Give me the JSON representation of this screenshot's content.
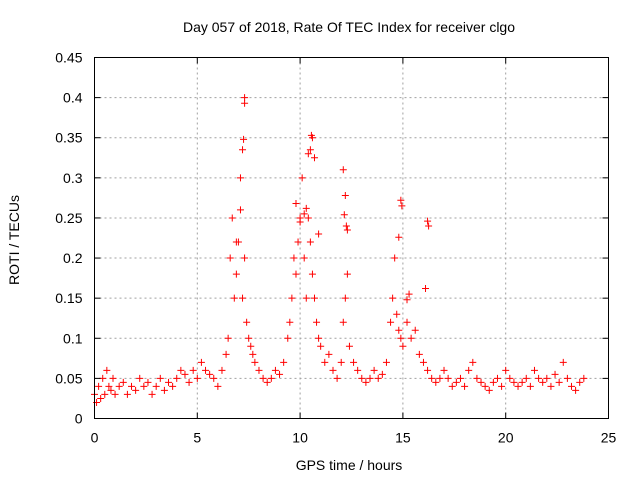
{
  "chart_data": {
    "type": "scatter",
    "title": "Day 057 of 2018, Rate Of TEC Index for receiver clgo",
    "xlabel": "GPS time / hours",
    "ylabel": "ROTI / TECUs",
    "xlim": [
      0,
      25
    ],
    "ylim": [
      0,
      0.45
    ],
    "x_ticks": [
      0,
      5,
      10,
      15,
      20,
      25
    ],
    "x_tick_labels": [
      "0",
      "5",
      "10",
      "15",
      "20",
      "25"
    ],
    "y_ticks": [
      0,
      0.05,
      0.1,
      0.15,
      0.2,
      0.25,
      0.3,
      0.35,
      0.4,
      0.45
    ],
    "y_tick_labels": [
      "0",
      "0.05",
      "0.1",
      "0.15",
      "0.2",
      "0.25",
      "0.3",
      "0.35",
      "0.4",
      "0.45"
    ],
    "grid": true,
    "marker": "+",
    "color": "#ff0000",
    "series": [
      {
        "name": "ROTI",
        "x": [
          0.0,
          0.1,
          0.2,
          0.3,
          0.4,
          0.5,
          0.6,
          0.7,
          0.8,
          0.9,
          1.0,
          1.2,
          1.4,
          1.6,
          1.8,
          2.0,
          2.2,
          2.4,
          2.6,
          2.8,
          3.0,
          3.2,
          3.4,
          3.6,
          3.8,
          4.0,
          4.2,
          4.4,
          4.6,
          4.8,
          5.0,
          5.2,
          5.4,
          5.6,
          5.8,
          6.0,
          6.2,
          6.4,
          6.5,
          6.6,
          6.7,
          6.8,
          6.9,
          7.0,
          7.1,
          7.2,
          7.3,
          7.4,
          7.5,
          7.6,
          7.7,
          7.8,
          8.0,
          8.2,
          8.4,
          8.6,
          8.8,
          9.0,
          9.2,
          9.4,
          9.5,
          9.6,
          9.7,
          9.8,
          9.9,
          10.0,
          10.1,
          10.2,
          10.3,
          10.4,
          10.5,
          10.6,
          10.7,
          10.8,
          10.9,
          11.0,
          11.2,
          11.4,
          11.6,
          11.8,
          12.0,
          12.1,
          12.2,
          12.3,
          12.4,
          12.6,
          12.8,
          13.0,
          13.2,
          13.4,
          13.6,
          13.8,
          14.0,
          14.2,
          14.4,
          14.5,
          14.6,
          14.7,
          14.8,
          14.9,
          15.0,
          15.2,
          15.4,
          15.6,
          15.8,
          16.0,
          16.2,
          16.4,
          16.6,
          16.8,
          17.0,
          17.2,
          17.4,
          17.6,
          17.8,
          18.0,
          18.2,
          18.4,
          18.6,
          18.8,
          19.0,
          19.2,
          19.4,
          19.6,
          19.8,
          20.0,
          20.2,
          20.4,
          20.6,
          20.8,
          21.0,
          21.2,
          21.4,
          21.6,
          21.8,
          22.0,
          22.2,
          22.4,
          22.6,
          22.8,
          23.0,
          23.2,
          23.4,
          23.6,
          23.8,
          7.3,
          7.3,
          7.25,
          7.2,
          10.55,
          10.6,
          10.5,
          10.4,
          10.7,
          12.1,
          12.2,
          12.15,
          14.9,
          14.95,
          14.8,
          16.2,
          16.25,
          16.1,
          9.8,
          10.2,
          10.3,
          10.0,
          12.3,
          12.25,
          7.1,
          6.9,
          10.9,
          15.3,
          15.2
        ],
        "y": [
          0.03,
          0.02,
          0.04,
          0.025,
          0.05,
          0.03,
          0.06,
          0.04,
          0.035,
          0.05,
          0.03,
          0.04,
          0.045,
          0.03,
          0.04,
          0.035,
          0.05,
          0.04,
          0.045,
          0.03,
          0.04,
          0.05,
          0.035,
          0.045,
          0.04,
          0.05,
          0.06,
          0.055,
          0.045,
          0.06,
          0.05,
          0.07,
          0.06,
          0.055,
          0.05,
          0.04,
          0.06,
          0.08,
          0.1,
          0.2,
          0.25,
          0.15,
          0.18,
          0.22,
          0.3,
          0.15,
          0.2,
          0.12,
          0.1,
          0.09,
          0.08,
          0.07,
          0.06,
          0.05,
          0.045,
          0.05,
          0.06,
          0.055,
          0.07,
          0.1,
          0.12,
          0.15,
          0.2,
          0.18,
          0.22,
          0.25,
          0.3,
          0.2,
          0.15,
          0.25,
          0.22,
          0.18,
          0.15,
          0.12,
          0.1,
          0.09,
          0.07,
          0.08,
          0.06,
          0.05,
          0.07,
          0.12,
          0.15,
          0.18,
          0.09,
          0.07,
          0.06,
          0.05,
          0.045,
          0.05,
          0.06,
          0.05,
          0.055,
          0.07,
          0.12,
          0.15,
          0.2,
          0.13,
          0.11,
          0.1,
          0.09,
          0.12,
          0.1,
          0.11,
          0.08,
          0.07,
          0.06,
          0.05,
          0.045,
          0.05,
          0.06,
          0.05,
          0.04,
          0.045,
          0.05,
          0.04,
          0.06,
          0.07,
          0.05,
          0.045,
          0.04,
          0.035,
          0.045,
          0.05,
          0.04,
          0.06,
          0.05,
          0.045,
          0.04,
          0.045,
          0.05,
          0.04,
          0.06,
          0.05,
          0.045,
          0.05,
          0.04,
          0.055,
          0.045,
          0.07,
          0.05,
          0.04,
          0.035,
          0.045,
          0.05,
          0.4,
          0.393,
          0.348,
          0.335,
          0.353,
          0.35,
          0.335,
          0.33,
          0.325,
          0.31,
          0.278,
          0.254,
          0.272,
          0.265,
          0.226,
          0.246,
          0.24,
          0.162,
          0.268,
          0.255,
          0.262,
          0.245,
          0.235,
          0.24,
          0.26,
          0.22,
          0.23,
          0.155,
          0.148
        ]
      }
    ]
  }
}
